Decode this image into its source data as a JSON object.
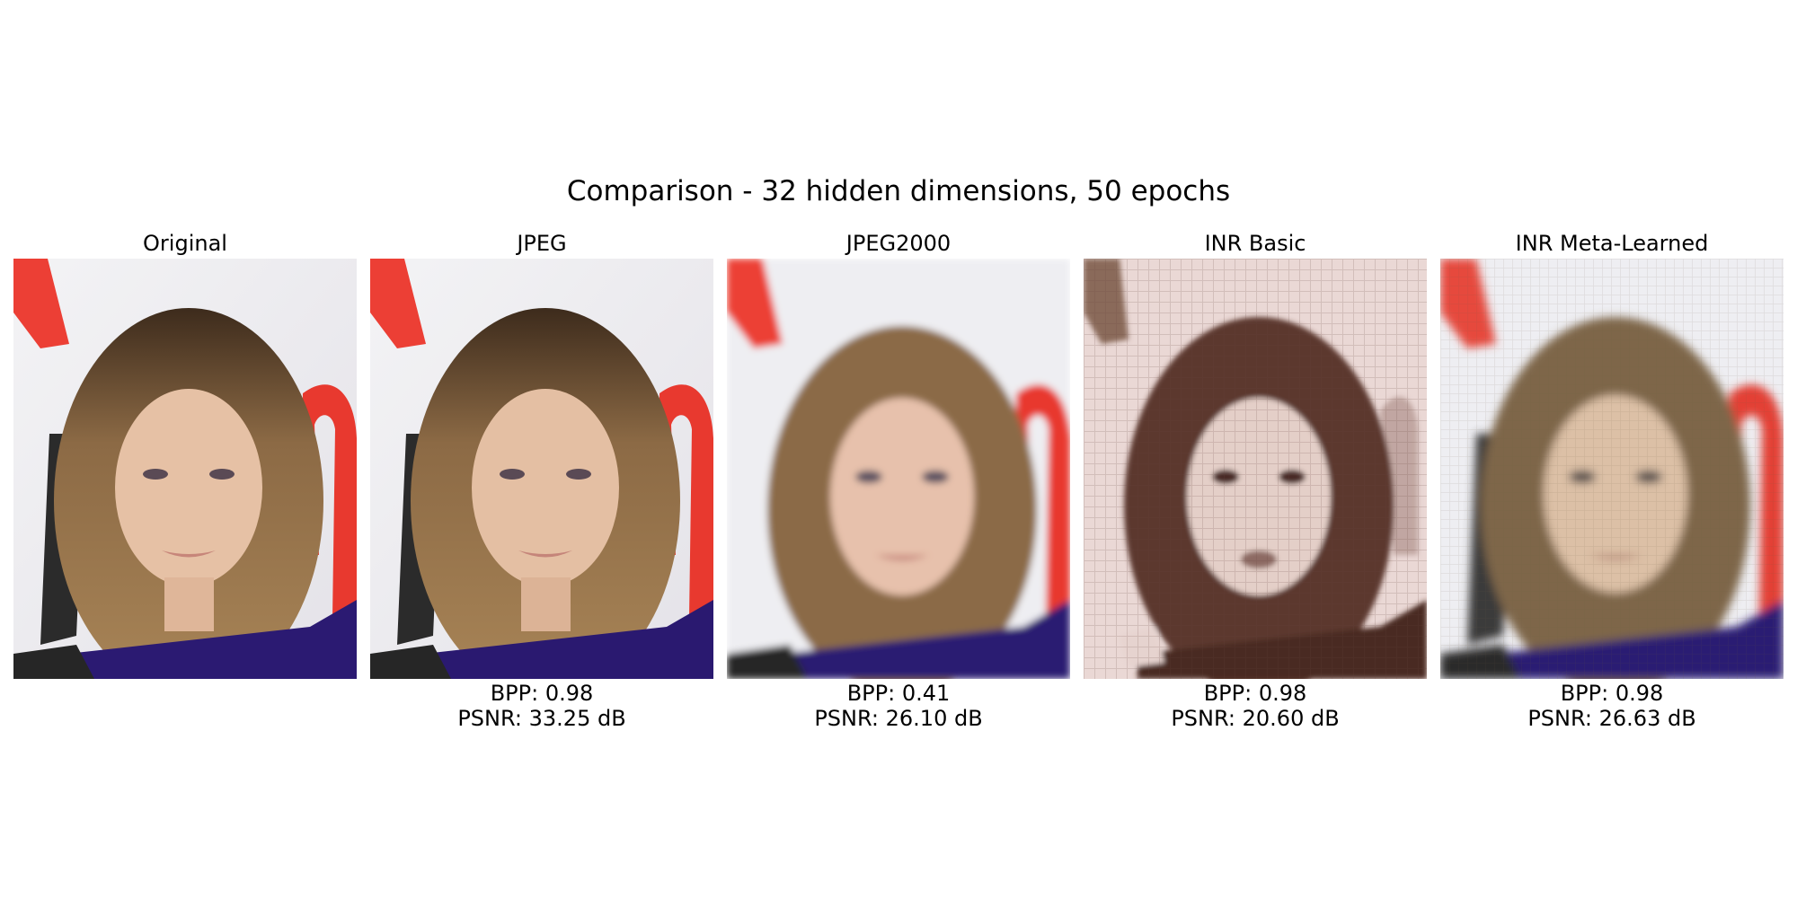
{
  "figure_title": "Comparison - 32 hidden dimensions, 50 epochs",
  "panels": [
    {
      "title": "Original",
      "image": "portrait-original",
      "bpp": null,
      "psnr": null
    },
    {
      "title": "JPEG",
      "image": "portrait-jpeg",
      "bpp": "BPP: 0.98",
      "psnr": "PSNR: 33.25 dB"
    },
    {
      "title": "JPEG2000",
      "image": "portrait-jpeg2000",
      "bpp": "BPP: 0.41",
      "psnr": "PSNR: 26.10 dB"
    },
    {
      "title": "INR Basic",
      "image": "portrait-inr-basic",
      "bpp": "BPP: 0.98",
      "psnr": "PSNR: 20.60 dB"
    },
    {
      "title": "INR Meta-Learned",
      "image": "portrait-inr-meta-learned",
      "bpp": "BPP: 0.98",
      "psnr": "PSNR: 26.63 dB"
    }
  ],
  "colors": {
    "background_wall": "#eeeef1",
    "red_stripe": "#e8463a",
    "hair": "#8a6a45",
    "skin": "#e7c2a8",
    "dress": "#2b1a72",
    "inr_basic_bg": "#ead8d5",
    "inr_basic_dark": "#4a2a22"
  }
}
